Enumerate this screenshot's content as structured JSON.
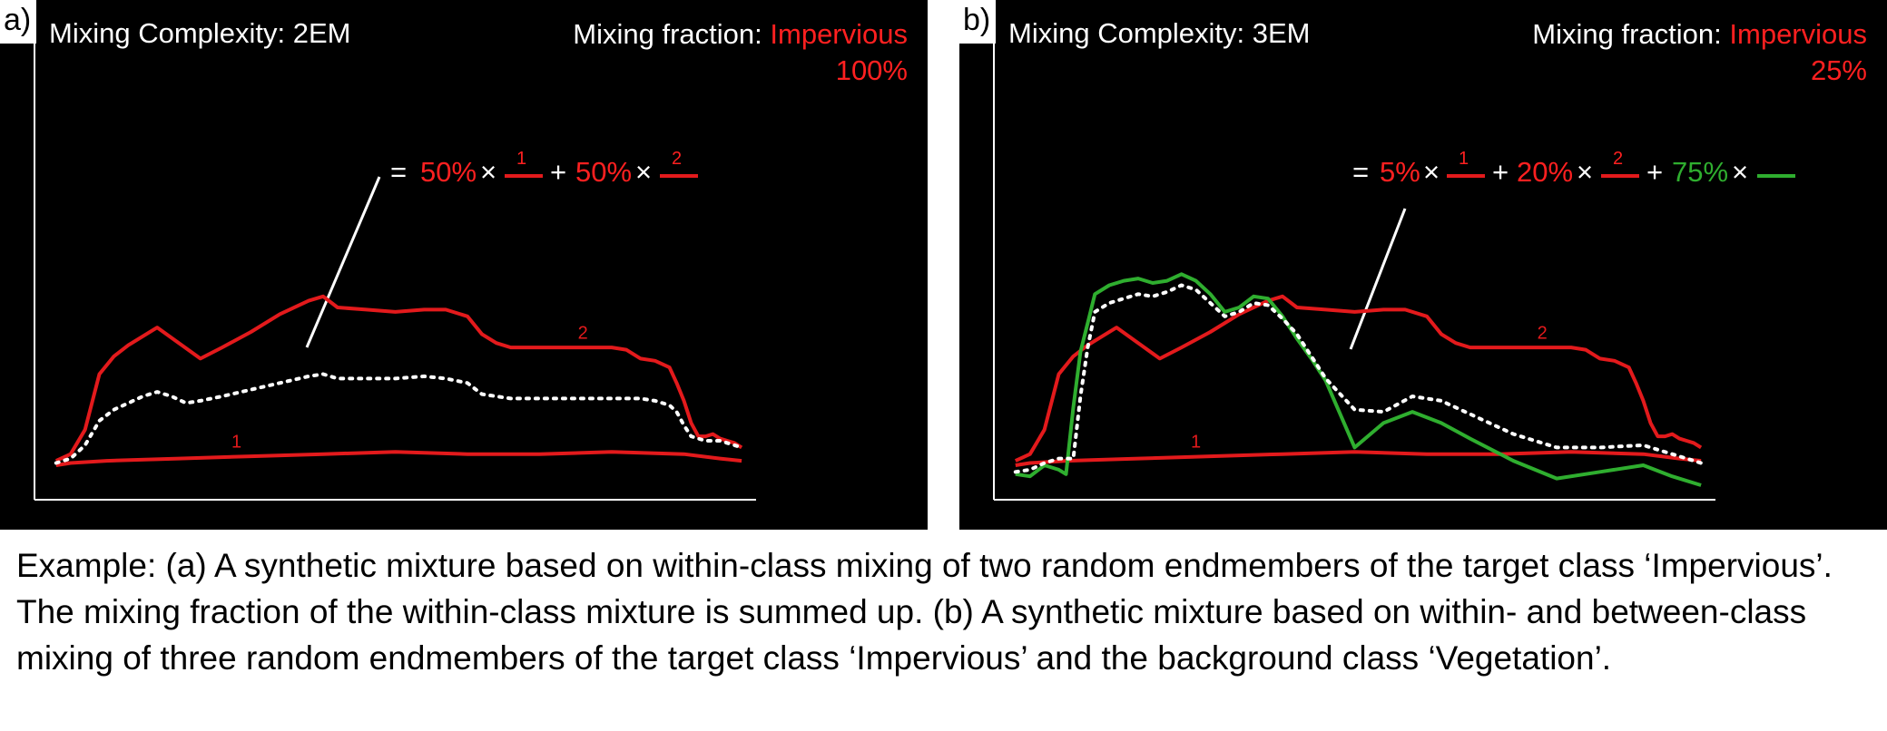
{
  "panels": [
    {
      "tag": "a)",
      "title": "Mixing Complexity: 2EM",
      "fraction_label": "Mixing fraction:",
      "fraction_class": "Impervious",
      "fraction_value": "100%",
      "equation": {
        "equals": "=",
        "terms": [
          {
            "coef": "50%",
            "times": "×",
            "index": "1",
            "color": "#e31a1c"
          },
          {
            "plus": "+",
            "coef": "50%",
            "times": "×",
            "index": "2",
            "color": "#e31a1c"
          }
        ]
      }
    },
    {
      "tag": "b)",
      "title": "Mixing Complexity: 3EM",
      "fraction_label": "Mixing fraction:",
      "fraction_class": "Impervious",
      "fraction_value": "25%",
      "equation": {
        "equals": "=",
        "terms": [
          {
            "coef": "5%",
            "times": "×",
            "index": "1",
            "color": "#e31a1c"
          },
          {
            "plus": "+",
            "coef": "20%",
            "times": "×",
            "index": "2",
            "color": "#e31a1c"
          },
          {
            "plus": "+",
            "coef": "75%",
            "times": "×",
            "index": "",
            "color": "#2fae2f"
          }
        ]
      }
    }
  ],
  "caption": "Example: (a) A synthetic mixture based on within-class mixing of two random endmembers of the target class ‘Impervious’. The mixing fraction of the within-class mixture is summed up. (b) A synthetic mixture based on within- and between-class mixing of three random endmembers of the target class ‘Impervious’ and the background class ‘Vegetation’.",
  "colors": {
    "impervious": "#e31a1c",
    "vegetation": "#2fae2f",
    "mixture": "#ffffff",
    "background": "#000000"
  },
  "chart_data": [
    {
      "type": "line",
      "panel": "a",
      "xlim": [
        0,
        100
      ],
      "ylim": [
        0,
        100
      ],
      "grid": false,
      "series": [
        {
          "name": "1",
          "style": "solid",
          "color": "#e31a1c",
          "x": [
            3,
            5,
            10,
            20,
            30,
            40,
            50,
            60,
            70,
            80,
            90,
            95,
            98
          ],
          "y": [
            9,
            10,
            11,
            12,
            13,
            14,
            15,
            14,
            14,
            15,
            14,
            12,
            11
          ]
        },
        {
          "name": "2",
          "style": "solid",
          "color": "#e31a1c",
          "x": [
            3,
            5,
            7,
            9,
            11,
            13,
            17,
            20,
            23,
            26,
            30,
            34,
            38,
            40,
            42,
            46,
            50,
            54,
            57,
            60,
            62,
            64,
            66,
            70,
            75,
            80,
            82,
            84,
            86,
            88,
            89,
            90,
            91,
            92,
            93,
            94,
            95,
            96,
            97,
            98
          ],
          "y": [
            11,
            14,
            25,
            50,
            58,
            63,
            71,
            64,
            57,
            62,
            69,
            77,
            83,
            85,
            80,
            79,
            78,
            79,
            79,
            76,
            68,
            64,
            62,
            62,
            62,
            62,
            61,
            57,
            56,
            53,
            46,
            38,
            28,
            22,
            22,
            23,
            21,
            20,
            19,
            17
          ]
        },
        {
          "name": "",
          "style": "dotted",
          "color": "#ffffff",
          "x": [
            3,
            5,
            7,
            9,
            11,
            13,
            15,
            17,
            19,
            21,
            23,
            26,
            30,
            34,
            38,
            40,
            42,
            46,
            50,
            54,
            57,
            60,
            62,
            64,
            66,
            70,
            75,
            80,
            82,
            84,
            86,
            88,
            89,
            90,
            91,
            92,
            93,
            94,
            95,
            96,
            97,
            98
          ],
          "y": [
            10,
            12,
            18,
            29,
            34,
            37,
            40,
            42,
            40,
            37,
            38,
            40,
            43,
            46,
            49,
            50,
            48,
            48,
            48,
            49,
            48,
            46,
            41,
            40,
            39,
            39,
            39,
            39,
            39,
            39,
            38,
            36,
            33,
            27,
            22,
            21,
            20,
            20,
            20,
            19,
            18,
            17
          ]
        }
      ],
      "annotations": [
        {
          "text": "1",
          "x": 28,
          "y": 17,
          "color": "#e31a1c"
        },
        {
          "text": "2",
          "x": 76,
          "y": 66,
          "color": "#e31a1c"
        }
      ]
    },
    {
      "type": "line",
      "panel": "b",
      "xlim": [
        0,
        100
      ],
      "ylim": [
        0,
        100
      ],
      "grid": false,
      "series": [
        {
          "name": "1",
          "style": "solid",
          "color": "#e31a1c",
          "x": [
            3,
            5,
            10,
            20,
            30,
            40,
            50,
            60,
            70,
            80,
            90,
            95,
            98
          ],
          "y": [
            9,
            10,
            11,
            12,
            13,
            14,
            15,
            14,
            14,
            15,
            14,
            12,
            11
          ]
        },
        {
          "name": "2",
          "style": "solid",
          "color": "#e31a1c",
          "x": [
            3,
            5,
            7,
            9,
            11,
            13,
            17,
            20,
            23,
            26,
            30,
            34,
            38,
            40,
            42,
            46,
            50,
            54,
            57,
            60,
            62,
            64,
            66,
            70,
            75,
            80,
            82,
            84,
            86,
            88,
            89,
            90,
            91,
            92,
            93,
            94,
            95,
            96,
            97,
            98
          ],
          "y": [
            11,
            14,
            25,
            50,
            58,
            63,
            71,
            64,
            57,
            62,
            69,
            77,
            83,
            85,
            80,
            79,
            78,
            79,
            79,
            76,
            68,
            64,
            62,
            62,
            62,
            62,
            61,
            57,
            56,
            53,
            46,
            38,
            28,
            22,
            22,
            23,
            21,
            20,
            19,
            17
          ]
        },
        {
          "name": "",
          "style": "solid",
          "color": "#2fae2f",
          "x": [
            3,
            5,
            7,
            9,
            10,
            11,
            12,
            13,
            14,
            16,
            18,
            20,
            22,
            24,
            26,
            28,
            30,
            32,
            34,
            36,
            38,
            40,
            42,
            44,
            46,
            50,
            54,
            58,
            62,
            66,
            72,
            78,
            84,
            90,
            94,
            98
          ],
          "y": [
            5,
            4,
            9,
            7,
            5,
            35,
            60,
            73,
            86,
            90,
            92,
            93,
            91,
            92,
            95,
            92,
            86,
            78,
            80,
            85,
            84,
            76,
            66,
            57,
            47,
            17,
            28,
            33,
            28,
            21,
            11,
            3,
            6,
            9,
            4,
            0
          ]
        },
        {
          "name": "",
          "style": "dotted",
          "color": "#ffffff",
          "x": [
            3,
            5,
            7,
            9,
            11,
            12,
            13,
            14,
            16,
            18,
            20,
            22,
            24,
            26,
            28,
            30,
            32,
            34,
            36,
            38,
            40,
            42,
            44,
            46,
            50,
            54,
            58,
            62,
            66,
            72,
            78,
            84,
            90,
            94,
            98
          ],
          "y": [
            6,
            7,
            10,
            12,
            12,
            40,
            62,
            78,
            82,
            84,
            86,
            85,
            87,
            90,
            88,
            82,
            76,
            78,
            82,
            81,
            75,
            68,
            58,
            48,
            34,
            33,
            40,
            38,
            32,
            23,
            17,
            17,
            18,
            14,
            10
          ]
        }
      ],
      "annotations": [
        {
          "text": "1",
          "x": 28,
          "y": 17,
          "color": "#e31a1c"
        },
        {
          "text": "2",
          "x": 76,
          "y": 66,
          "color": "#e31a1c"
        }
      ]
    }
  ]
}
